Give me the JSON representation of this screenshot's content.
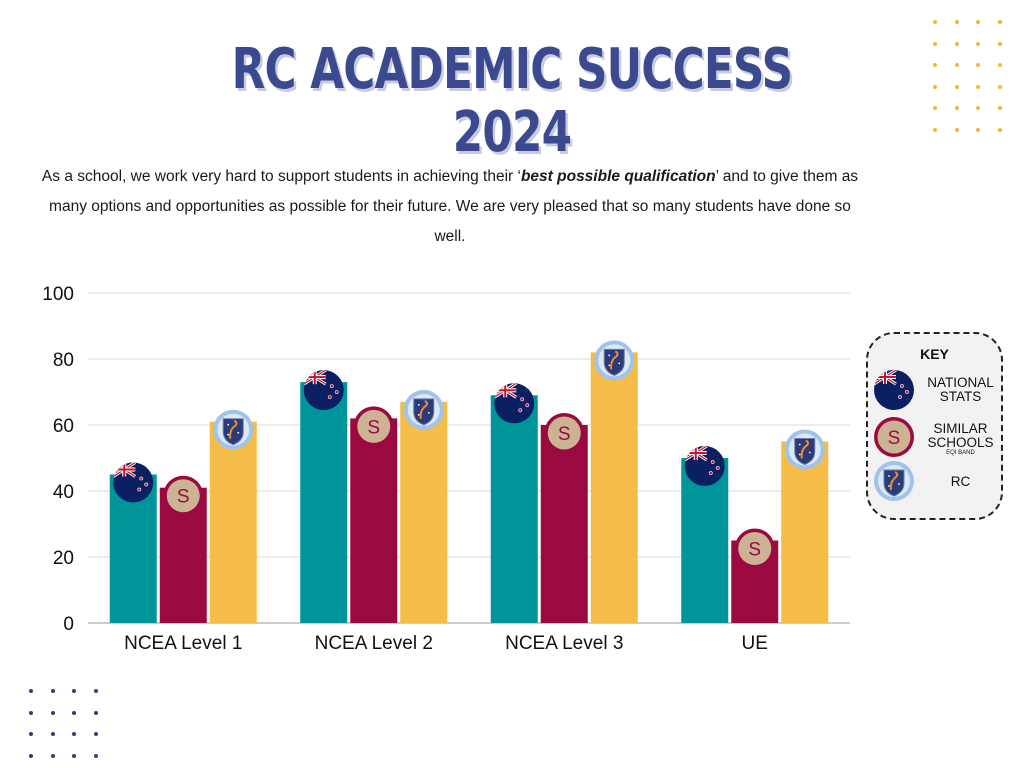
{
  "header": {
    "title_line1": "RC ACADEMIC SUCCESS",
    "title_line2": "2024"
  },
  "intro": {
    "before": "As a school, we work very hard to support students in achieving their ‘",
    "emphasis": "best possible qualification",
    "after": "’ and to give them as many options and opportunities as possible for their future. We are very pleased that so many students have done so well."
  },
  "key": {
    "title": "KEY",
    "national": "NATIONAL STATS",
    "similar": "SIMILAR SCHOOLS",
    "similar_note": "EQI BAND",
    "rc": "RC"
  },
  "colors": {
    "national": "#00959a",
    "similar": "#9a0a41",
    "rc": "#f5bc47",
    "title": "#3b4a8e",
    "dots_orange": "#f5b53b",
    "dots_navy": "#2f3e7e"
  },
  "chart_data": {
    "type": "bar",
    "categories": [
      "NCEA Level 1",
      "NCEA Level 2",
      "NCEA Level 3",
      "UE"
    ],
    "series": [
      {
        "key": "national",
        "values": [
          45,
          73,
          69,
          50
        ]
      },
      {
        "key": "similar",
        "values": [
          41,
          62,
          60,
          25
        ]
      },
      {
        "key": "rc",
        "values": [
          61,
          67,
          82,
          55
        ]
      }
    ],
    "ylim": [
      0,
      100
    ],
    "yticks": [
      0,
      20,
      40,
      60,
      80,
      100
    ],
    "grid": true,
    "legend": "right"
  }
}
